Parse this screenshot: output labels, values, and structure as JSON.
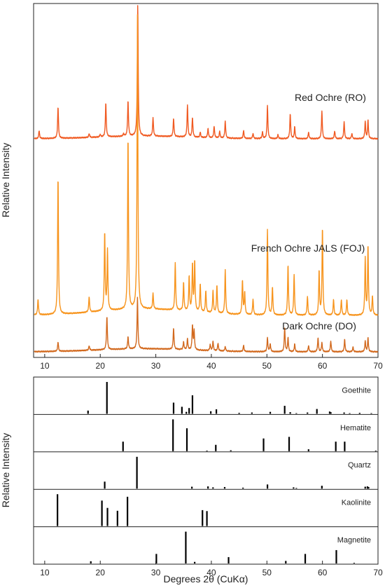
{
  "chart_data": [
    {
      "type": "line",
      "title": "",
      "xlabel": "",
      "ylabel": "Relative Intensity",
      "xlim": [
        8,
        70
      ],
      "xticks": [
        10,
        20,
        30,
        40,
        50,
        60,
        70
      ],
      "colors": {
        "red_ochre": "#f05a22",
        "french_ochre": "#f7941d",
        "dark_ochre": "#d2691e"
      },
      "series": [
        {
          "name": "Red Ochre (RO)",
          "peaks": [
            [
              9.0,
              0.06
            ],
            [
              12.4,
              0.24
            ],
            [
              18.0,
              0.03
            ],
            [
              20.0,
              0.02
            ],
            [
              21.0,
              0.26
            ],
            [
              24.2,
              0.02
            ],
            [
              25.0,
              0.27
            ],
            [
              26.75,
              1.0
            ],
            [
              29.5,
              0.14
            ],
            [
              33.2,
              0.14
            ],
            [
              35.7,
              0.24
            ],
            [
              36.6,
              0.15
            ],
            [
              38.0,
              0.04
            ],
            [
              39.4,
              0.07
            ],
            [
              40.5,
              0.09
            ],
            [
              41.5,
              0.05
            ],
            [
              42.5,
              0.13
            ],
            [
              45.8,
              0.06
            ],
            [
              47.5,
              0.04
            ],
            [
              49.2,
              0.05
            ],
            [
              50.1,
              0.25
            ],
            [
              52.0,
              0.03
            ],
            [
              54.2,
              0.19
            ],
            [
              55.0,
              0.09
            ],
            [
              57.5,
              0.05
            ],
            [
              59.9,
              0.21
            ],
            [
              62.2,
              0.06
            ],
            [
              63.9,
              0.13
            ],
            [
              65.3,
              0.04
            ],
            [
              67.7,
              0.13
            ],
            [
              68.2,
              0.14
            ]
          ]
        },
        {
          "name": "French Ochre JALS (FOJ)",
          "peaks": [
            [
              8.8,
              0.05
            ],
            [
              12.4,
              0.44
            ],
            [
              18.0,
              0.05
            ],
            [
              20.8,
              0.25
            ],
            [
              21.3,
              0.19
            ],
            [
              25.0,
              0.55
            ],
            [
              26.7,
              0.93
            ],
            [
              29.5,
              0.05
            ],
            [
              33.5,
              0.15
            ],
            [
              35.0,
              0.09
            ],
            [
              36.0,
              0.11
            ],
            [
              36.6,
              0.15
            ],
            [
              37.0,
              0.16
            ],
            [
              38.0,
              0.09
            ],
            [
              39.0,
              0.07
            ],
            [
              40.3,
              0.07
            ],
            [
              41.0,
              0.09
            ],
            [
              42.5,
              0.14
            ],
            [
              45.6,
              0.11
            ],
            [
              46.0,
              0.07
            ],
            [
              47.5,
              0.05
            ],
            [
              50.1,
              0.27
            ],
            [
              51.0,
              0.09
            ],
            [
              53.8,
              0.16
            ],
            [
              54.9,
              0.13
            ],
            [
              57.3,
              0.06
            ],
            [
              59.4,
              0.14
            ],
            [
              60.0,
              0.28
            ],
            [
              62.0,
              0.05
            ],
            [
              63.4,
              0.05
            ],
            [
              64.4,
              0.05
            ],
            [
              67.7,
              0.18
            ],
            [
              68.2,
              0.22
            ],
            [
              69.0,
              0.06
            ]
          ]
        },
        {
          "name": "Dark Ochre (DO)",
          "peaks": [
            [
              12.4,
              0.06
            ],
            [
              18.0,
              0.03
            ],
            [
              21.2,
              0.22
            ],
            [
              25.0,
              0.08
            ],
            [
              26.7,
              0.33
            ],
            [
              33.2,
              0.14
            ],
            [
              35.0,
              0.05
            ],
            [
              35.7,
              0.07
            ],
            [
              36.6,
              0.16
            ],
            [
              36.9,
              0.12
            ],
            [
              39.8,
              0.04
            ],
            [
              40.3,
              0.06
            ],
            [
              41.2,
              0.05
            ],
            [
              42.5,
              0.03
            ],
            [
              45.8,
              0.04
            ],
            [
              50.1,
              0.09
            ],
            [
              50.6,
              0.05
            ],
            [
              53.2,
              0.16
            ],
            [
              53.8,
              0.09
            ],
            [
              55.0,
              0.05
            ],
            [
              57.5,
              0.04
            ],
            [
              59.2,
              0.09
            ],
            [
              59.9,
              0.06
            ],
            [
              61.5,
              0.07
            ],
            [
              64.0,
              0.08
            ],
            [
              65.5,
              0.03
            ],
            [
              67.7,
              0.07
            ],
            [
              68.2,
              0.09
            ]
          ]
        }
      ]
    },
    {
      "type": "bar",
      "title": "",
      "xlabel": "Degrees 2θ (CuKα)",
      "ylabel": "Relative Intensity",
      "xlim": [
        8,
        70
      ],
      "xticks": [
        10,
        20,
        30,
        40,
        50,
        60,
        70
      ],
      "panels": [
        {
          "name": "Goethite",
          "lines": [
            [
              17.8,
              0.1
            ],
            [
              21.2,
              1.0
            ],
            [
              33.2,
              0.35
            ],
            [
              34.7,
              0.22
            ],
            [
              35.5,
              0.06
            ],
            [
              36.0,
              0.18
            ],
            [
              36.6,
              0.58
            ],
            [
              39.9,
              0.08
            ],
            [
              40.9,
              0.14
            ],
            [
              45.0,
              0.03
            ],
            [
              47.3,
              0.04
            ],
            [
              50.6,
              0.06
            ],
            [
              53.2,
              0.25
            ],
            [
              54.2,
              0.05
            ],
            [
              55.3,
              0.02
            ],
            [
              57.3,
              0.04
            ],
            [
              59.0,
              0.15
            ],
            [
              61.3,
              0.07
            ],
            [
              61.5,
              0.05
            ],
            [
              63.9,
              0.04
            ],
            [
              64.9,
              0.02
            ],
            [
              66.7,
              0.03
            ],
            [
              68.8,
              0.02
            ]
          ]
        },
        {
          "name": "Hematite",
          "lines": [
            [
              24.1,
              0.3
            ],
            [
              33.1,
              1.0
            ],
            [
              35.6,
              0.72
            ],
            [
              39.2,
              0.02
            ],
            [
              40.8,
              0.2
            ],
            [
              43.5,
              0.03
            ],
            [
              49.4,
              0.4
            ],
            [
              54.0,
              0.45
            ],
            [
              57.5,
              0.06
            ],
            [
              62.4,
              0.3
            ],
            [
              64.0,
              0.3
            ],
            [
              69.6,
              0.02
            ]
          ]
        },
        {
          "name": "Quartz",
          "lines": [
            [
              20.8,
              0.22
            ],
            [
              26.6,
              1.0
            ],
            [
              36.5,
              0.06
            ],
            [
              39.4,
              0.07
            ],
            [
              40.3,
              0.04
            ],
            [
              42.4,
              0.05
            ],
            [
              45.7,
              0.03
            ],
            [
              50.1,
              0.13
            ],
            [
              54.8,
              0.04
            ],
            [
              55.3,
              0.02
            ],
            [
              59.9,
              0.09
            ],
            [
              67.7,
              0.06
            ],
            [
              68.1,
              0.07
            ],
            [
              68.3,
              0.05
            ]
          ]
        },
        {
          "name": "Kaolinite",
          "lines": [
            [
              12.3,
              1.0
            ],
            [
              20.3,
              0.8
            ],
            [
              21.3,
              0.57
            ],
            [
              23.1,
              0.48
            ],
            [
              24.9,
              0.92
            ],
            [
              38.4,
              0.5
            ],
            [
              39.2,
              0.47
            ]
          ]
        },
        {
          "name": "Magnetite",
          "lines": [
            [
              18.3,
              0.07
            ],
            [
              30.1,
              0.3
            ],
            [
              35.4,
              1.0
            ],
            [
              37.0,
              0.05
            ],
            [
              43.1,
              0.2
            ],
            [
              53.4,
              0.08
            ],
            [
              56.9,
              0.3
            ],
            [
              62.5,
              0.42
            ],
            [
              65.7,
              0.02
            ]
          ]
        }
      ]
    }
  ]
}
